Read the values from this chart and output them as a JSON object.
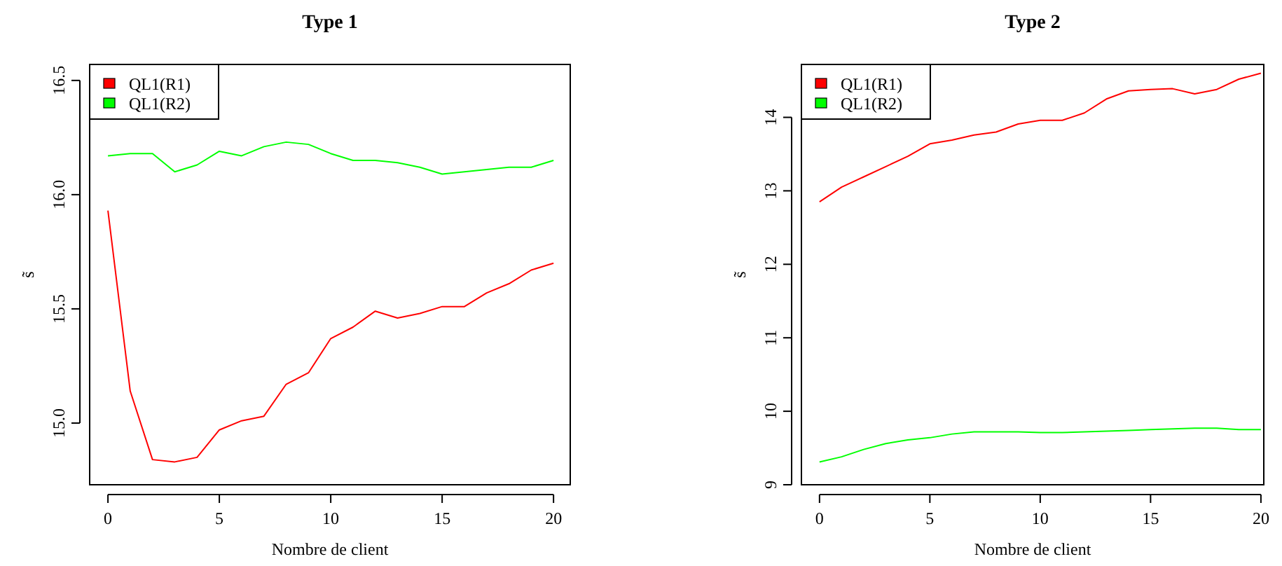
{
  "chart_data": [
    {
      "type": "line",
      "title": "Type 1",
      "xlabel": "Nombre de client",
      "ylabel": "s̃",
      "x": [
        0,
        1,
        2,
        3,
        4,
        5,
        6,
        7,
        8,
        9,
        10,
        11,
        12,
        13,
        14,
        15,
        16,
        17,
        18,
        19,
        20
      ],
      "series": [
        {
          "name": "QL1(R1)",
          "color": "#ff0000",
          "values": [
            15.93,
            15.14,
            14.84,
            14.83,
            14.85,
            14.97,
            15.01,
            15.03,
            15.17,
            15.22,
            15.37,
            15.42,
            15.49,
            15.46,
            15.48,
            15.51,
            15.51,
            15.57,
            15.61,
            15.67,
            15.7
          ]
        },
        {
          "name": "QL1(R2)",
          "color": "#00ff00",
          "values": [
            16.17,
            16.18,
            16.18,
            16.1,
            16.13,
            16.19,
            16.17,
            16.21,
            16.23,
            16.22,
            16.18,
            16.15,
            16.15,
            16.14,
            16.12,
            16.09,
            16.1,
            16.11,
            16.12,
            16.12,
            16.15
          ]
        }
      ],
      "xlim": [
        -0.82,
        20.75
      ],
      "xticks": [
        0,
        5,
        10,
        15,
        20
      ],
      "ylim": [
        14.73,
        16.57
      ],
      "yticks": [
        {
          "value": 15,
          "label": "15.0"
        },
        15.5,
        {
          "value": 16,
          "label": "16.0"
        },
        16.5
      ],
      "legend": "top left",
      "grid": false
    },
    {
      "type": "line",
      "title": "Type 2",
      "xlabel": "Nombre de client",
      "ylabel": "s̃",
      "x": [
        0,
        1,
        2,
        3,
        4,
        5,
        6,
        7,
        8,
        9,
        10,
        11,
        12,
        13,
        14,
        15,
        16,
        17,
        18,
        19,
        20
      ],
      "series": [
        {
          "name": "QL1(R1)",
          "color": "#ff0000",
          "values": [
            12.85,
            13.05,
            13.19,
            13.33,
            13.47,
            13.64,
            13.69,
            13.76,
            13.8,
            13.91,
            13.96,
            13.96,
            14.06,
            14.25,
            14.36,
            14.38,
            14.39,
            14.32,
            14.38,
            14.52,
            14.6
          ]
        },
        {
          "name": "QL1(R2)",
          "color": "#00ff00",
          "values": [
            9.31,
            9.38,
            9.48,
            9.56,
            9.61,
            9.64,
            9.69,
            9.72,
            9.72,
            9.72,
            9.71,
            9.71,
            9.72,
            9.73,
            9.74,
            9.75,
            9.76,
            9.77,
            9.77,
            9.75,
            9.75
          ]
        }
      ],
      "xlim": [
        -0.82,
        20.13
      ],
      "xticks": [
        0,
        5,
        10,
        15,
        20
      ],
      "ylim": [
        9,
        14.72
      ],
      "yticks": [
        9,
        10,
        11,
        12,
        13,
        14
      ],
      "legend": "top left",
      "grid": false
    }
  ]
}
